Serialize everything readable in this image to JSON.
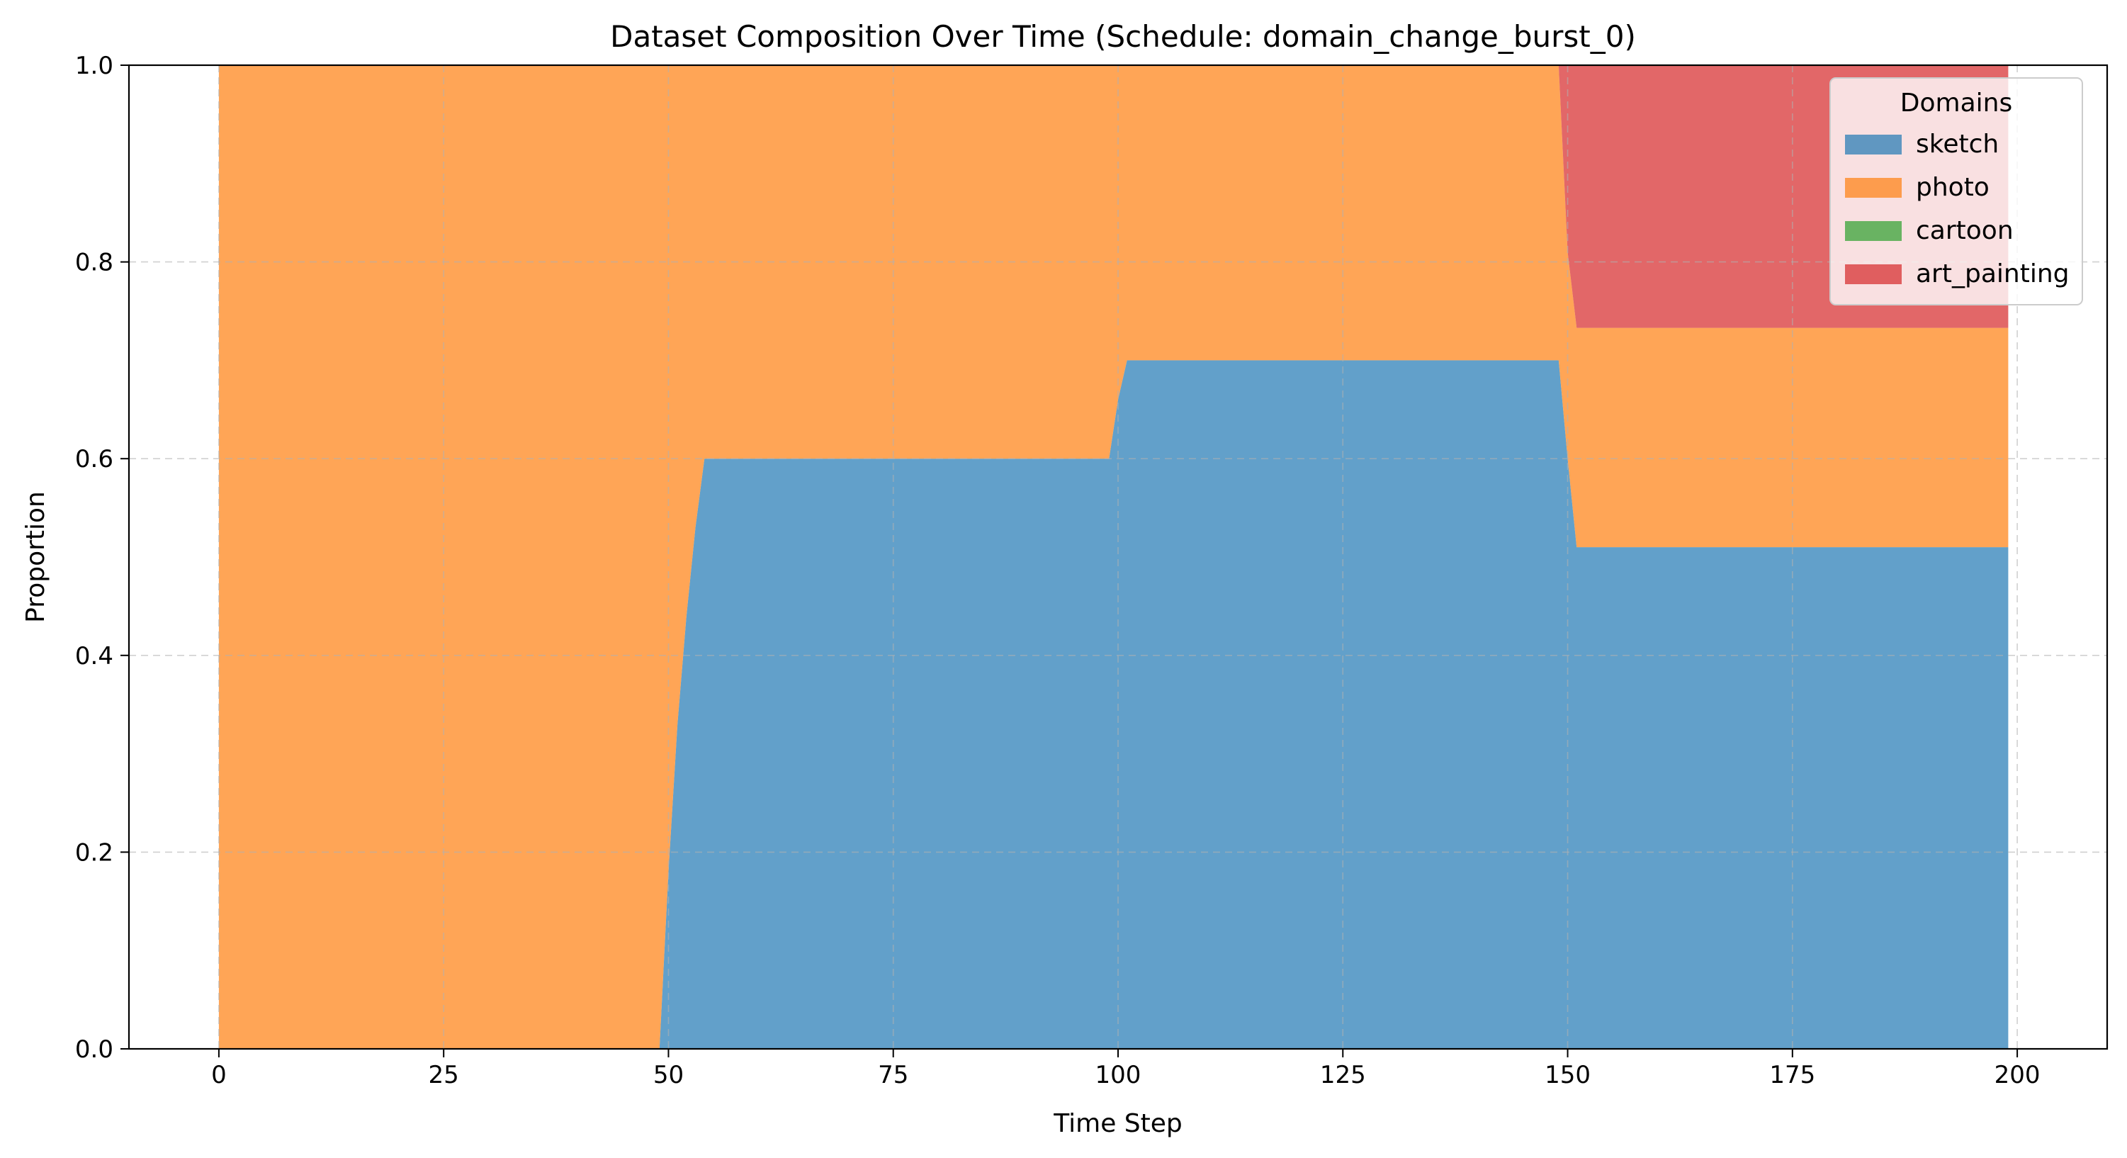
{
  "chart_data": {
    "type": "area",
    "stacked": true,
    "title": "Dataset Composition Over Time (Schedule: domain_change_burst_0)",
    "xlabel": "Time Step",
    "ylabel": "Proportion",
    "xlim": [
      -10,
      210
    ],
    "ylim": [
      0.0,
      1.0
    ],
    "xticks": [
      0,
      25,
      50,
      75,
      100,
      125,
      150,
      175,
      200
    ],
    "xtick_labels": [
      "0",
      "25",
      "50",
      "75",
      "100",
      "125",
      "150",
      "175",
      "200"
    ],
    "yticks": [
      0.0,
      0.2,
      0.4,
      0.6,
      0.8,
      1.0
    ],
    "ytick_labels": [
      "0.0",
      "0.2",
      "0.4",
      "0.6",
      "0.8",
      "1.0"
    ],
    "grid": true,
    "legend": {
      "title": "Domains",
      "placement": "top-right"
    },
    "x": [
      0,
      49,
      50,
      51,
      52,
      53,
      54,
      99,
      100,
      101,
      149,
      150,
      151,
      199
    ],
    "series": [
      {
        "name": "sketch",
        "color": "#1f77b4",
        "values": [
          0,
          0,
          0.18,
          0.33,
          0.44,
          0.53,
          0.6,
          0.6,
          0.66,
          0.7,
          0.7,
          0.6,
          0.51,
          0.51
        ]
      },
      {
        "name": "photo",
        "color": "#ff7f0e",
        "values": [
          1,
          1,
          0.82,
          0.67,
          0.56,
          0.47,
          0.4,
          0.4,
          0.34,
          0.3,
          0.3,
          0.21,
          0.223,
          0.223
        ]
      },
      {
        "name": "cartoon",
        "color": "#2ca02c",
        "values": [
          0,
          0,
          0,
          0,
          0,
          0,
          0,
          0,
          0,
          0,
          0,
          0,
          0,
          0
        ]
      },
      {
        "name": "art_painting",
        "color": "#d62728",
        "values": [
          0,
          0,
          0,
          0,
          0,
          0,
          0,
          0,
          0,
          0,
          0,
          0.19,
          0.267,
          0.267
        ]
      }
    ]
  }
}
